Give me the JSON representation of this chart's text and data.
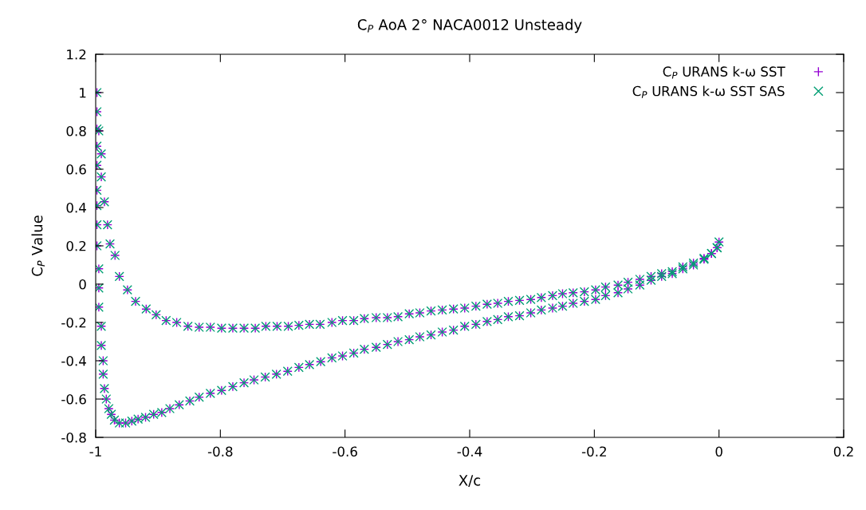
{
  "chart_data": {
    "type": "scatter",
    "title": "C$_{P}$ AoA 2° NACA0012 Unsteady",
    "xlabel": "X/c",
    "ylabel": "C$_{P}$ Value",
    "xlim": [
      -1,
      0.2
    ],
    "ylim": [
      -0.8,
      1.2
    ],
    "xticks": [
      -1,
      -0.8,
      -0.6,
      -0.4,
      -0.2,
      0,
      0.2
    ],
    "yticks": [
      -0.8,
      -0.6,
      -0.4,
      -0.2,
      0,
      0.2,
      0.4,
      0.6,
      0.8,
      1,
      1.2
    ],
    "grid": false,
    "legend": "top right",
    "x": [
      0,
      -0.003,
      -0.012,
      -0.024,
      -0.041,
      -0.058,
      -0.075,
      -0.092,
      -0.109,
      -0.127,
      -0.146,
      -0.162,
      -0.182,
      -0.198,
      -0.216,
      -0.234,
      -0.251,
      -0.267,
      -0.285,
      -0.302,
      -0.32,
      -0.338,
      -0.355,
      -0.372,
      -0.39,
      -0.408,
      -0.426,
      -0.444,
      -0.462,
      -0.48,
      -0.497,
      -0.515,
      -0.532,
      -0.55,
      -0.569,
      -0.586,
      -0.604,
      -0.621,
      -0.64,
      -0.657,
      -0.674,
      -0.691,
      -0.709,
      -0.727,
      -0.744,
      -0.762,
      -0.78,
      -0.798,
      -0.816,
      -0.834,
      -0.852,
      -0.87,
      -0.887,
      -0.903,
      -0.919,
      -0.936,
      -0.949,
      -0.962,
      -0.969,
      -0.977,
      -0.981,
      -0.986,
      -0.991,
      -0.991,
      -0.995,
      -0.998,
      -0.998,
      -0.998,
      -0.998,
      -0.998,
      -0.998,
      -0.998,
      -0.998,
      -0.998,
      -0.995,
      -0.995,
      -0.995,
      -0.991,
      -0.991,
      -0.988,
      -0.988,
      -0.986,
      -0.983,
      -0.979,
      -0.975,
      -0.97,
      -0.962,
      -0.952,
      -0.942,
      -0.932,
      -0.92,
      -0.907,
      -0.894,
      -0.881,
      -0.866,
      -0.849,
      -0.834,
      -0.816,
      -0.798,
      -0.78,
      -0.762,
      -0.746,
      -0.728,
      -0.71,
      -0.692,
      -0.674,
      -0.657,
      -0.639,
      -0.621,
      -0.604,
      -0.586,
      -0.569,
      -0.55,
      -0.532,
      -0.515,
      -0.497,
      -0.48,
      -0.462,
      -0.444,
      -0.426,
      -0.408,
      -0.39,
      -0.372,
      -0.355,
      -0.338,
      -0.32,
      -0.302,
      -0.285,
      -0.267,
      -0.251,
      -0.234,
      -0.216,
      -0.198,
      -0.182,
      -0.162,
      -0.146,
      -0.127,
      -0.109,
      -0.092,
      -0.075,
      -0.058,
      -0.041,
      -0.024,
      -0.012,
      -0.003
    ],
    "series": [
      {
        "name": "C$_{P}$ URANS k-ω SST",
        "color": "#9400d3",
        "marker": "plus",
        "values": [
          0.22,
          0.19,
          0.16,
          0.135,
          0.11,
          0.09,
          0.065,
          0.055,
          0.04,
          0.025,
          0.01,
          -0.005,
          -0.015,
          -0.03,
          -0.04,
          -0.045,
          -0.05,
          -0.06,
          -0.07,
          -0.08,
          -0.085,
          -0.09,
          -0.1,
          -0.105,
          -0.115,
          -0.125,
          -0.13,
          -0.135,
          -0.14,
          -0.15,
          -0.155,
          -0.17,
          -0.175,
          -0.175,
          -0.18,
          -0.19,
          -0.19,
          -0.2,
          -0.21,
          -0.21,
          -0.215,
          -0.22,
          -0.22,
          -0.22,
          -0.23,
          -0.23,
          -0.23,
          -0.23,
          -0.225,
          -0.225,
          -0.22,
          -0.2,
          -0.19,
          -0.16,
          -0.13,
          -0.09,
          -0.03,
          0.04,
          0.15,
          0.21,
          0.31,
          0.43,
          0.56,
          0.68,
          0.8,
          1.0,
          0.9,
          0.81,
          0.72,
          0.62,
          0.49,
          0.41,
          0.31,
          0.2,
          0.08,
          -0.02,
          -0.12,
          -0.22,
          -0.32,
          -0.4,
          -0.47,
          -0.545,
          -0.6,
          -0.65,
          -0.68,
          -0.71,
          -0.725,
          -0.725,
          -0.715,
          -0.705,
          -0.695,
          -0.68,
          -0.67,
          -0.65,
          -0.63,
          -0.61,
          -0.59,
          -0.57,
          -0.555,
          -0.535,
          -0.515,
          -0.5,
          -0.485,
          -0.47,
          -0.455,
          -0.435,
          -0.42,
          -0.405,
          -0.385,
          -0.375,
          -0.36,
          -0.34,
          -0.33,
          -0.315,
          -0.3,
          -0.29,
          -0.275,
          -0.265,
          -0.25,
          -0.24,
          -0.22,
          -0.21,
          -0.195,
          -0.185,
          -0.17,
          -0.165,
          -0.15,
          -0.135,
          -0.125,
          -0.115,
          -0.1,
          -0.09,
          -0.08,
          -0.06,
          -0.045,
          -0.025,
          -0.005,
          0.02,
          0.04,
          0.055,
          0.08,
          0.1,
          0.13,
          0.16,
          0.19
        ]
      },
      {
        "name": "C$_{P}$ URANS k-ω SST SAS",
        "color": "#009e73",
        "marker": "cross",
        "values": [
          0.22,
          0.19,
          0.16,
          0.135,
          0.11,
          0.09,
          0.065,
          0.055,
          0.04,
          0.025,
          0.01,
          -0.005,
          -0.015,
          -0.03,
          -0.04,
          -0.045,
          -0.05,
          -0.06,
          -0.07,
          -0.08,
          -0.085,
          -0.09,
          -0.1,
          -0.105,
          -0.115,
          -0.125,
          -0.13,
          -0.135,
          -0.14,
          -0.15,
          -0.155,
          -0.17,
          -0.175,
          -0.175,
          -0.18,
          -0.19,
          -0.19,
          -0.2,
          -0.21,
          -0.21,
          -0.215,
          -0.22,
          -0.22,
          -0.22,
          -0.23,
          -0.23,
          -0.23,
          -0.23,
          -0.225,
          -0.225,
          -0.22,
          -0.2,
          -0.19,
          -0.16,
          -0.13,
          -0.09,
          -0.03,
          0.04,
          0.15,
          0.21,
          0.31,
          0.43,
          0.56,
          0.68,
          0.8,
          1.0,
          0.9,
          0.81,
          0.72,
          0.62,
          0.49,
          0.41,
          0.31,
          0.2,
          0.08,
          -0.02,
          -0.12,
          -0.22,
          -0.32,
          -0.4,
          -0.47,
          -0.545,
          -0.6,
          -0.65,
          -0.68,
          -0.71,
          -0.725,
          -0.725,
          -0.715,
          -0.705,
          -0.695,
          -0.68,
          -0.67,
          -0.65,
          -0.63,
          -0.61,
          -0.59,
          -0.57,
          -0.555,
          -0.535,
          -0.515,
          -0.5,
          -0.485,
          -0.47,
          -0.455,
          -0.435,
          -0.42,
          -0.405,
          -0.385,
          -0.375,
          -0.36,
          -0.34,
          -0.33,
          -0.315,
          -0.3,
          -0.29,
          -0.275,
          -0.265,
          -0.25,
          -0.24,
          -0.22,
          -0.21,
          -0.195,
          -0.185,
          -0.17,
          -0.165,
          -0.15,
          -0.135,
          -0.125,
          -0.115,
          -0.1,
          -0.09,
          -0.08,
          -0.06,
          -0.045,
          -0.025,
          -0.005,
          0.02,
          0.04,
          0.055,
          0.08,
          0.1,
          0.13,
          0.16,
          0.19
        ]
      }
    ]
  }
}
